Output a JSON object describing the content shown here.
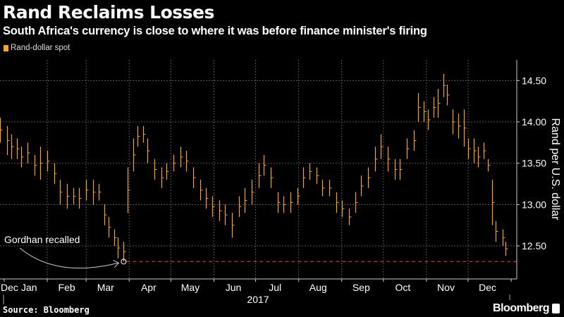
{
  "title": "Rand Reclaims Losses",
  "subtitle": "South Africa's currency is close to where it was before finance minister's firing",
  "source": "Source: Bloomberg",
  "brand": "Bloomberg",
  "colors": {
    "series": "#f5a623",
    "threshold": "#e0242b",
    "grid": "#555555",
    "background": "#000000"
  },
  "chart_data": {
    "type": "bar",
    "style": "high-low price bars",
    "legend": {
      "entries": [
        "Rand-dollar spot"
      ],
      "placement": "top-left"
    },
    "ylabel": "Rand per U.S. dollar",
    "y_axis_side": "right",
    "yticks": [
      12.5,
      13.0,
      13.5,
      14.0,
      14.5
    ],
    "ytick_labels": [
      "12.50",
      "13.00",
      "13.50",
      "14.00",
      "14.50"
    ],
    "ylim": [
      12.1,
      14.75
    ],
    "xlim": [
      "2016-12-29",
      "2018-01-05"
    ],
    "xtick_labels": [
      "Dec",
      "Jan",
      "Feb",
      "Mar",
      "Apr",
      "May",
      "Jun",
      "Jul",
      "Aug",
      "Sep",
      "Oct",
      "Nov",
      "Dec"
    ],
    "year_label": "2017",
    "grid": true,
    "annotation": {
      "text": "Gordhan recalled",
      "date": "2017-03-28",
      "value": 12.31
    },
    "threshold_line": {
      "value": 12.31,
      "style": "dashed"
    },
    "series": [
      {
        "name": "Rand-dollar spot",
        "columns": [
          "date",
          "low",
          "high"
        ],
        "values": [
          [
            "2016-12-29",
            13.75,
            14.05
          ],
          [
            "2017-01-03",
            13.6,
            13.95
          ],
          [
            "2017-01-06",
            13.55,
            13.85
          ],
          [
            "2017-01-10",
            13.55,
            13.8
          ],
          [
            "2017-01-13",
            13.45,
            13.7
          ],
          [
            "2017-01-18",
            13.5,
            13.75
          ],
          [
            "2017-01-23",
            13.35,
            13.6
          ],
          [
            "2017-01-27",
            13.3,
            13.7
          ],
          [
            "2017-02-01",
            13.4,
            13.65
          ],
          [
            "2017-02-06",
            13.25,
            13.5
          ],
          [
            "2017-02-10",
            13.0,
            13.3
          ],
          [
            "2017-02-15",
            12.95,
            13.25
          ],
          [
            "2017-02-20",
            13.0,
            13.2
          ],
          [
            "2017-02-24",
            12.95,
            13.2
          ],
          [
            "2017-03-01",
            13.05,
            13.3
          ],
          [
            "2017-03-06",
            13.0,
            13.3
          ],
          [
            "2017-03-10",
            13.05,
            13.25
          ],
          [
            "2017-03-14",
            12.75,
            13.0
          ],
          [
            "2017-03-17",
            12.6,
            12.85
          ],
          [
            "2017-03-21",
            12.5,
            12.7
          ],
          [
            "2017-03-24",
            12.35,
            12.6
          ],
          [
            "2017-03-28",
            12.31,
            12.55
          ],
          [
            "2017-03-31",
            12.9,
            13.45
          ],
          [
            "2017-04-04",
            13.4,
            13.8
          ],
          [
            "2017-04-07",
            13.7,
            13.95
          ],
          [
            "2017-04-11",
            13.75,
            13.95
          ],
          [
            "2017-04-14",
            13.5,
            13.8
          ],
          [
            "2017-04-19",
            13.3,
            13.55
          ],
          [
            "2017-04-24",
            13.2,
            13.45
          ],
          [
            "2017-04-28",
            13.3,
            13.5
          ],
          [
            "2017-05-03",
            13.4,
            13.6
          ],
          [
            "2017-05-08",
            13.45,
            13.7
          ],
          [
            "2017-05-12",
            13.4,
            13.65
          ],
          [
            "2017-05-17",
            13.2,
            13.45
          ],
          [
            "2017-05-22",
            13.05,
            13.3
          ],
          [
            "2017-05-26",
            12.95,
            13.2
          ],
          [
            "2017-05-31",
            12.85,
            13.1
          ],
          [
            "2017-06-05",
            12.8,
            13.05
          ],
          [
            "2017-06-09",
            12.75,
            13.0
          ],
          [
            "2017-06-14",
            12.6,
            12.9
          ],
          [
            "2017-06-19",
            12.85,
            13.1
          ],
          [
            "2017-06-23",
            12.9,
            13.2
          ],
          [
            "2017-06-28",
            13.0,
            13.3
          ],
          [
            "2017-07-03",
            13.2,
            13.5
          ],
          [
            "2017-07-07",
            13.35,
            13.6
          ],
          [
            "2017-07-12",
            13.2,
            13.45
          ],
          [
            "2017-07-17",
            12.9,
            13.15
          ],
          [
            "2017-07-21",
            12.9,
            13.1
          ],
          [
            "2017-07-26",
            12.9,
            13.15
          ],
          [
            "2017-07-31",
            13.0,
            13.2
          ],
          [
            "2017-08-04",
            13.2,
            13.45
          ],
          [
            "2017-08-09",
            13.3,
            13.5
          ],
          [
            "2017-08-14",
            13.25,
            13.45
          ],
          [
            "2017-08-18",
            13.1,
            13.3
          ],
          [
            "2017-08-23",
            13.1,
            13.3
          ],
          [
            "2017-08-28",
            12.9,
            13.15
          ],
          [
            "2017-09-01",
            12.85,
            13.05
          ],
          [
            "2017-09-06",
            12.75,
            12.95
          ],
          [
            "2017-09-11",
            12.9,
            13.15
          ],
          [
            "2017-09-15",
            13.1,
            13.35
          ],
          [
            "2017-09-20",
            13.2,
            13.45
          ],
          [
            "2017-09-25",
            13.4,
            13.7
          ],
          [
            "2017-09-29",
            13.55,
            13.85
          ],
          [
            "2017-10-04",
            13.4,
            13.7
          ],
          [
            "2017-10-09",
            13.3,
            13.55
          ],
          [
            "2017-10-13",
            13.3,
            13.55
          ],
          [
            "2017-10-18",
            13.55,
            13.8
          ],
          [
            "2017-10-23",
            13.65,
            13.9
          ],
          [
            "2017-10-26",
            14.0,
            14.35
          ],
          [
            "2017-10-30",
            14.0,
            14.25
          ],
          [
            "2017-11-02",
            13.9,
            14.15
          ],
          [
            "2017-11-06",
            14.05,
            14.3
          ],
          [
            "2017-11-09",
            14.05,
            14.4
          ],
          [
            "2017-11-13",
            14.3,
            14.58
          ],
          [
            "2017-11-16",
            14.2,
            14.45
          ],
          [
            "2017-11-20",
            13.85,
            14.15
          ],
          [
            "2017-11-24",
            13.8,
            14.1
          ],
          [
            "2017-11-28",
            13.7,
            14.15
          ],
          [
            "2017-12-01",
            13.55,
            13.8
          ],
          [
            "2017-12-05",
            13.5,
            13.8
          ],
          [
            "2017-12-08",
            13.45,
            13.7
          ],
          [
            "2017-12-12",
            13.55,
            13.75
          ],
          [
            "2017-12-15",
            13.4,
            13.55
          ],
          [
            "2017-12-18",
            12.75,
            13.3
          ],
          [
            "2017-12-21",
            12.55,
            12.8
          ],
          [
            "2017-12-26",
            12.5,
            12.7
          ],
          [
            "2017-12-28",
            12.38,
            12.55
          ]
        ]
      }
    ]
  }
}
